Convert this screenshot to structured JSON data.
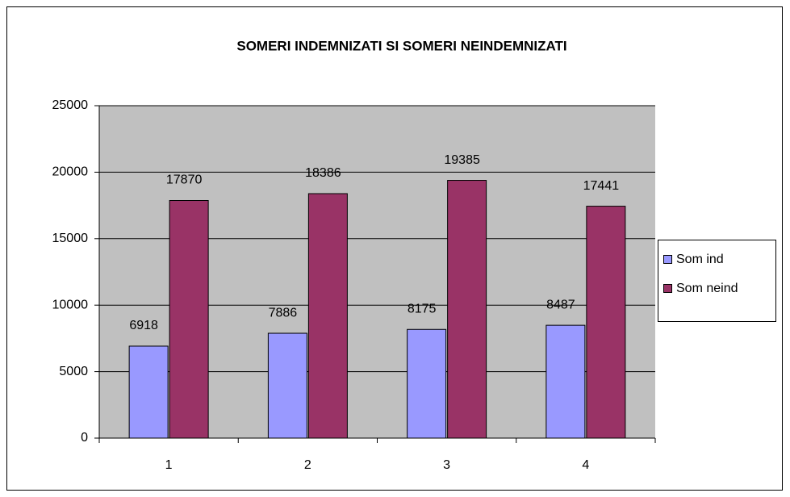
{
  "chart_data": {
    "type": "bar",
    "title": "SOMERI INDEMNIZATI SI SOMERI NEINDEMNIZATI",
    "categories": [
      "1",
      "2",
      "3",
      "4"
    ],
    "series": [
      {
        "name": "Som ind",
        "color": "#9999ff",
        "values": [
          6918,
          7886,
          8175,
          8487
        ]
      },
      {
        "name": "Som neind",
        "color": "#993366",
        "values": [
          17870,
          18386,
          19385,
          17441
        ]
      }
    ],
    "ylim": [
      0,
      25000
    ],
    "yticks": [
      0,
      5000,
      10000,
      15000,
      20000,
      25000
    ],
    "grid": true,
    "legend": "right"
  }
}
